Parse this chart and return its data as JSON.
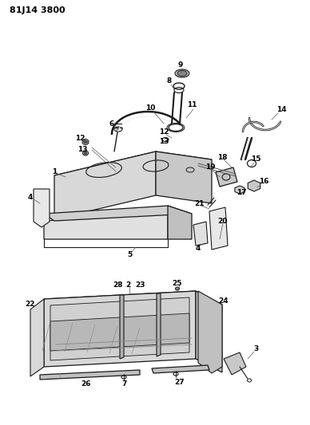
{
  "title": "81J14 3800",
  "background_color": "#ffffff",
  "line_color": "#1a1a1a",
  "text_color": "#000000",
  "fig_width": 3.88,
  "fig_height": 5.33,
  "dpi": 100
}
